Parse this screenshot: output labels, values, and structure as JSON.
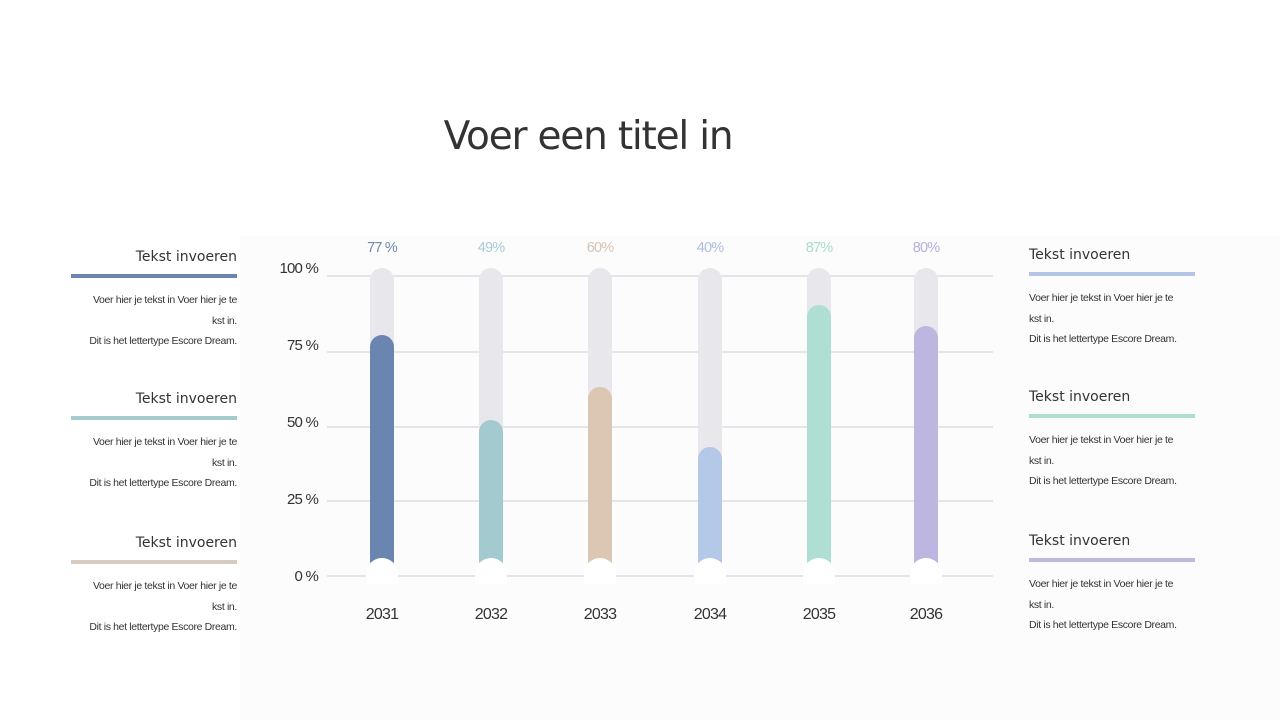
{
  "title": "Voer een titel in",
  "left_blocks": [
    {
      "heading": "Tekst invoeren",
      "color": "#6a86b0",
      "lines": [
        "Voer hier je tekst in Voer hier je te",
        "kst in.",
        "Dit is het lettertype Escore Dream."
      ]
    },
    {
      "heading": "Tekst invoeren",
      "color": "#a3cbcb",
      "lines": [
        "Voer hier je tekst in Voer hier je te",
        "kst in.",
        "Dit is het lettertype Escore Dream."
      ]
    },
    {
      "heading": "Tekst invoeren",
      "color": "#d5cbc1",
      "lines": [
        "Voer hier je tekst in Voer hier je te",
        "kst in.",
        "Dit is het lettertype Escore Dream."
      ]
    }
  ],
  "right_blocks": [
    {
      "heading": "Tekst invoeren",
      "color": "#b4c6e4",
      "lines": [
        "Voer hier je tekst in Voer hier je te",
        "kst in.",
        "Dit is het lettertype Escore Dream."
      ]
    },
    {
      "heading": "Tekst invoeren",
      "color": "#aee0d2",
      "lines": [
        "Voer hier je tekst in Voer hier je te",
        "kst in.",
        "Dit is het lettertype Escore Dream."
      ]
    },
    {
      "heading": "Tekst invoeren",
      "color": "#bcb8de",
      "lines": [
        "Voer hier je tekst in Voer hier je te",
        "kst in.",
        "Dit is het lettertype Escore Dream."
      ]
    }
  ],
  "chart_data": {
    "type": "bar",
    "title": "",
    "xlabel": "",
    "ylabel": "",
    "categories": [
      "2031",
      "2032",
      "2033",
      "2034",
      "2035",
      "2036"
    ],
    "values": [
      77,
      49,
      60,
      40,
      87,
      80
    ],
    "value_labels": [
      "77 %",
      "49%",
      "60%",
      "40%",
      "87%",
      "80%"
    ],
    "colors": [
      "#6a86b0",
      "#a3cbcf",
      "#dcc6b4",
      "#b4c8e8",
      "#afdfd2",
      "#bdb6e0"
    ],
    "label_colors": [
      "#6f87ad",
      "#a6cdd2",
      "#d9c3b0",
      "#aebfdd",
      "#aadcce",
      "#b6b0dc"
    ],
    "yticks": [
      "100 %",
      "75 %",
      "50 %",
      "25 %",
      "0 %"
    ],
    "ylim": [
      0,
      100
    ],
    "grid": true,
    "legend": null,
    "track_color": "#e8e7ec"
  }
}
